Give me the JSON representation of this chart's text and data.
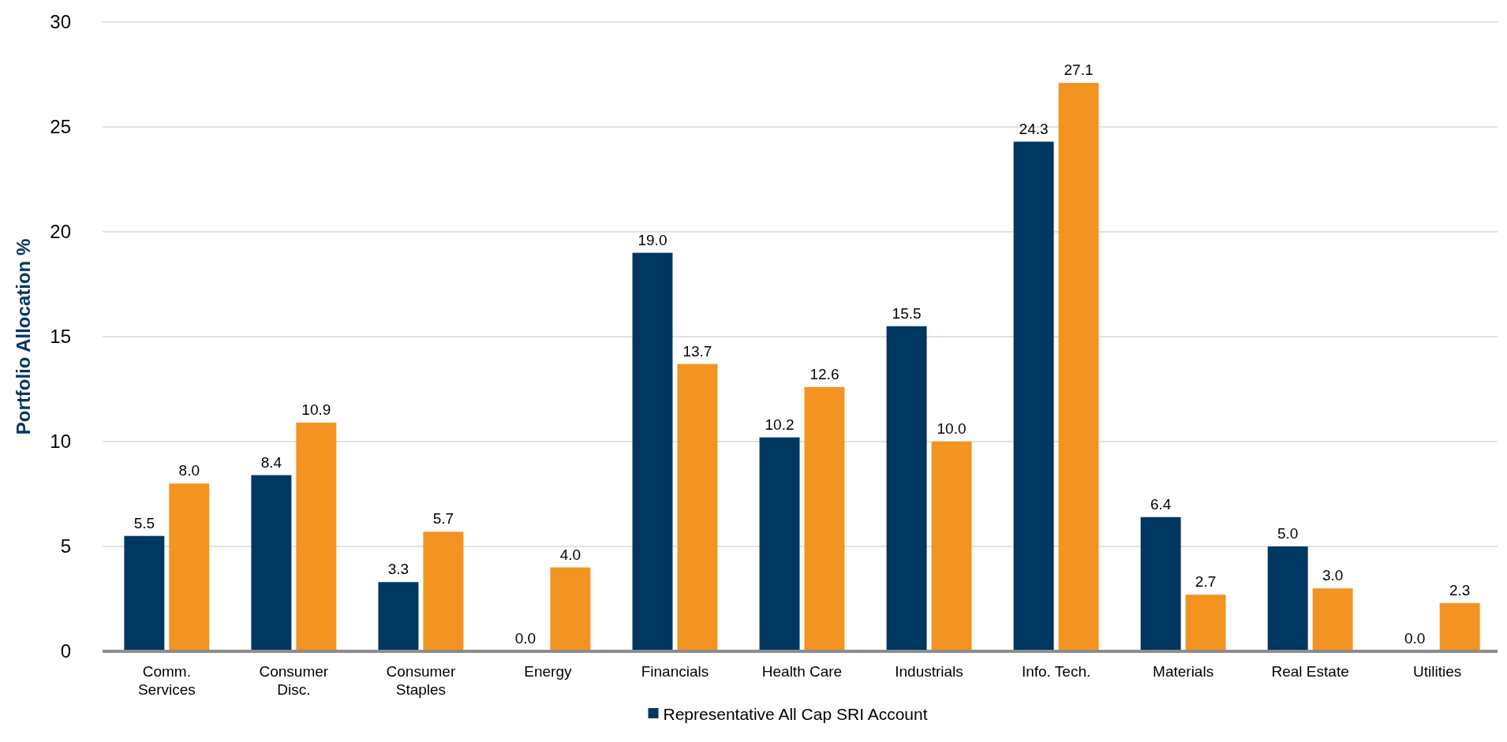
{
  "chart_data": {
    "type": "bar",
    "ylabel": "Portfolio Allocation %",
    "categories": [
      "Comm.\nServices",
      "Consumer\nDisc.",
      "Consumer\nStaples",
      "Energy",
      "Financials",
      "Health Care",
      "Industrials",
      "Info. Tech.",
      "Materials",
      "Real Estate",
      "Utilities"
    ],
    "series": [
      {
        "name": "Representative All Cap SRI Account",
        "color": "#003761",
        "values": [
          5.5,
          8.4,
          3.3,
          0.0,
          19.0,
          10.2,
          15.5,
          24.3,
          6.4,
          5.0,
          0.0
        ],
        "value_labels": [
          "5.5",
          "8.4",
          "3.3",
          "0.0",
          "19.0",
          "10.2",
          "15.5",
          "24.3",
          "6.4",
          "5.0",
          "0.0"
        ]
      },
      {
        "color": "#f39321",
        "values": [
          8.0,
          10.9,
          5.7,
          4.0,
          13.7,
          12.6,
          10.0,
          27.1,
          2.7,
          3.0,
          2.3
        ],
        "value_labels": [
          "8.0",
          "10.9",
          "5.7",
          "4.0",
          "13.7",
          "12.6",
          "10.0",
          "27.1",
          "2.7",
          "3.0",
          "2.3"
        ]
      }
    ],
    "ylim": [
      0,
      30
    ],
    "yticks": [
      0,
      5,
      10,
      15,
      20,
      25,
      30
    ],
    "grid": "y",
    "legend": "bottom"
  }
}
